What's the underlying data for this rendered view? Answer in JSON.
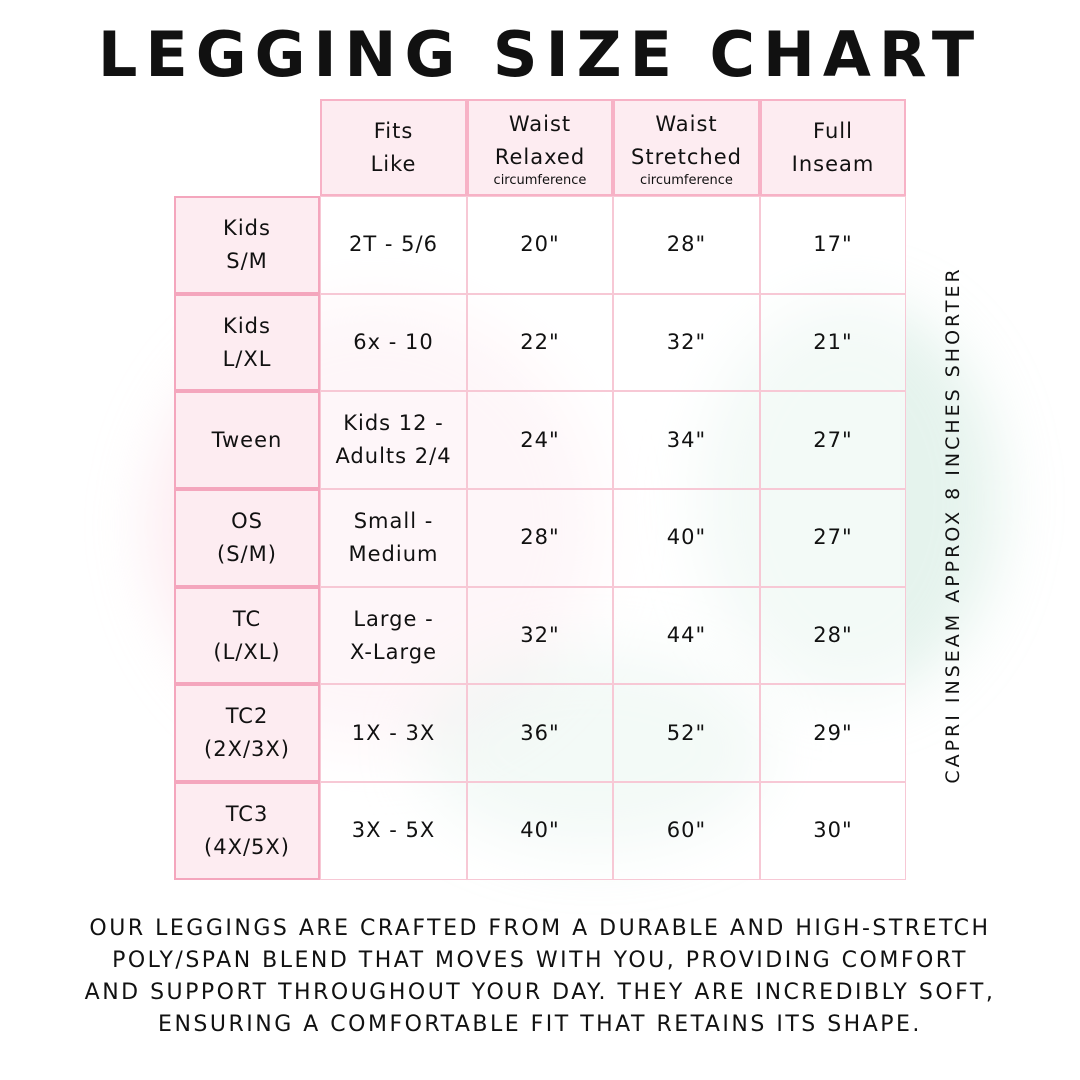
{
  "title": "LEGGING SIZE CHART",
  "headers": [
    {
      "line1": "Fits",
      "line2": "Like",
      "sub": ""
    },
    {
      "line1": "Waist",
      "line2": "Relaxed",
      "sub": "circumference"
    },
    {
      "line1": "Waist",
      "line2": "Stretched",
      "sub": "circumference"
    },
    {
      "line1": "Full",
      "line2": "Inseam",
      "sub": ""
    }
  ],
  "rows": [
    {
      "size1": "Kids",
      "size2": "S/M",
      "fits1": "2T - 5/6",
      "fits2": "",
      "relaxed": "20\"",
      "stretched": "28\"",
      "inseam": "17\""
    },
    {
      "size1": "Kids",
      "size2": "L/XL",
      "fits1": "6x - 10",
      "fits2": "",
      "relaxed": "22\"",
      "stretched": "32\"",
      "inseam": "21\""
    },
    {
      "size1": "Tween",
      "size2": "",
      "fits1": "Kids 12 -",
      "fits2": "Adults 2/4",
      "relaxed": "24\"",
      "stretched": "34\"",
      "inseam": "27\""
    },
    {
      "size1": "OS",
      "size2": "(S/M)",
      "fits1": "Small -",
      "fits2": "Medium",
      "relaxed": "28\"",
      "stretched": "40\"",
      "inseam": "27\""
    },
    {
      "size1": "TC",
      "size2": "(L/XL)",
      "fits1": "Large -",
      "fits2": "X-Large",
      "relaxed": "32\"",
      "stretched": "44\"",
      "inseam": "28\""
    },
    {
      "size1": "TC2",
      "size2": "(2X/3X)",
      "fits1": "1X - 3X",
      "fits2": "",
      "relaxed": "36\"",
      "stretched": "52\"",
      "inseam": "29\""
    },
    {
      "size1": "TC3",
      "size2": "(4X/5X)",
      "fits1": "3X - 5X",
      "fits2": "",
      "relaxed": "40\"",
      "stretched": "60\"",
      "inseam": "30\""
    }
  ],
  "side_note": "CAPRI INSEAM APPROX 8 INCHES SHORTER",
  "description": [
    "Our leggings are crafted from a durable and high-stretch",
    "poly/span blend that moves with you, providing comfort",
    "and support throughout your day. They are incredibly soft,",
    "ensuring a comfortable fit that retains its shape."
  ],
  "colors": {
    "border": "#f4a6bd",
    "header_fill": "#fdecf1"
  }
}
